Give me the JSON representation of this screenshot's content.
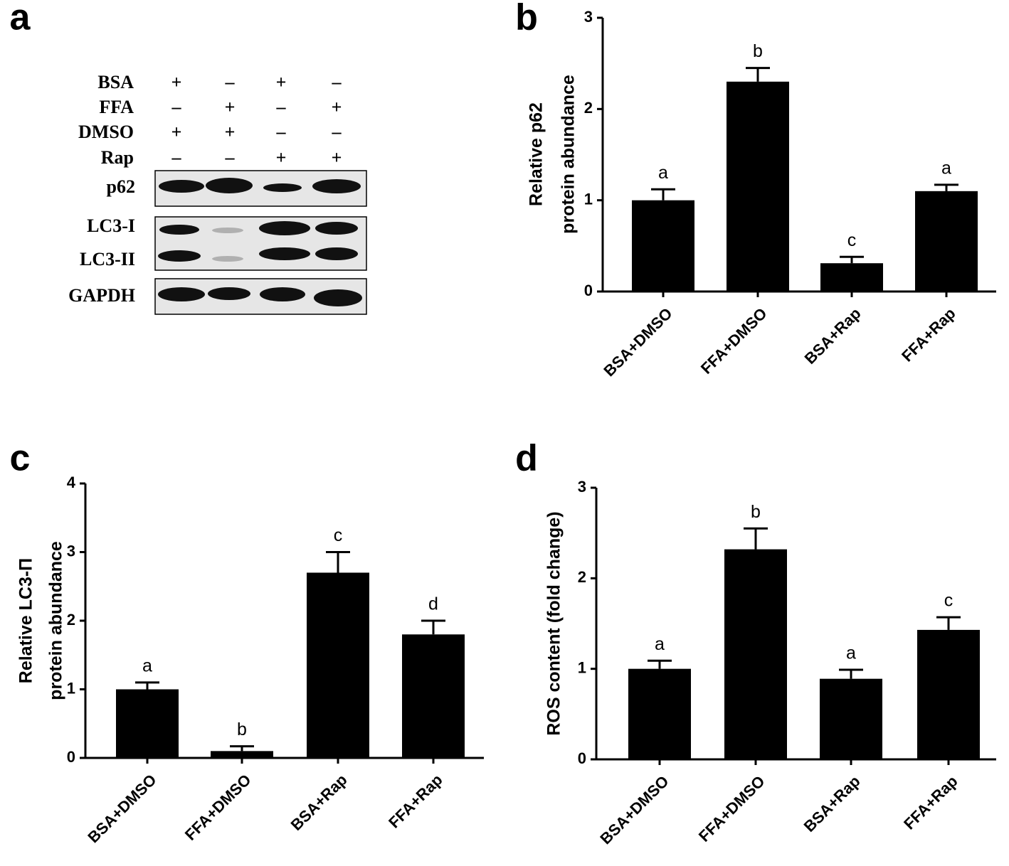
{
  "panels": [
    "a",
    "b",
    "c",
    "d"
  ],
  "blot": {
    "treatments": [
      {
        "name": "BSA",
        "signs": [
          "+",
          "–",
          "+",
          "–"
        ]
      },
      {
        "name": "FFA",
        "signs": [
          "–",
          "+",
          "–",
          "+"
        ]
      },
      {
        "name": "DMSO",
        "signs": [
          "+",
          "+",
          "–",
          "–"
        ]
      },
      {
        "name": "Rap",
        "signs": [
          "–",
          "–",
          "+",
          "+"
        ]
      }
    ],
    "bands": [
      "p62",
      "LC3-I",
      "LC3-II",
      "GAPDH"
    ]
  },
  "chart_data": [
    {
      "type": "bar",
      "ylabel": [
        "Relative p62",
        "protein abundance"
      ],
      "categories": [
        "BSA+DMSO",
        "FFA+DMSO",
        "BSA+Rap",
        "FFA+Rap"
      ],
      "values": [
        1.0,
        2.3,
        0.31,
        1.1
      ],
      "errors": [
        0.12,
        0.15,
        0.07,
        0.07
      ],
      "annotations": [
        "a",
        "b",
        "c",
        "a"
      ],
      "color": "#000000",
      "ylim": [
        0,
        3
      ],
      "yticks": [
        0,
        1,
        2,
        3
      ]
    },
    {
      "type": "bar",
      "ylabel": [
        "Relative LC3-Π",
        "protein abundance"
      ],
      "categories": [
        "BSA+DMSO",
        "FFA+DMSO",
        "BSA+Rap",
        "FFA+Rap"
      ],
      "values": [
        1.0,
        0.1,
        2.7,
        1.8
      ],
      "errors": [
        0.1,
        0.07,
        0.3,
        0.2
      ],
      "annotations": [
        "a",
        "b",
        "c",
        "d"
      ],
      "color": "#000000",
      "ylim": [
        0,
        4
      ],
      "yticks": [
        0,
        1,
        2,
        3,
        4
      ]
    },
    {
      "type": "bar",
      "ylabel": [
        "ROS content (fold change)"
      ],
      "categories": [
        "BSA+DMSO",
        "FFA+DMSO",
        "BSA+Rap",
        "FFA+Rap"
      ],
      "values": [
        1.0,
        2.32,
        0.89,
        1.43
      ],
      "errors": [
        0.09,
        0.23,
        0.1,
        0.14
      ],
      "annotations": [
        "a",
        "b",
        "a",
        "c"
      ],
      "color": "#000000",
      "ylim": [
        0,
        3
      ],
      "yticks": [
        0,
        1,
        2,
        3
      ]
    }
  ]
}
